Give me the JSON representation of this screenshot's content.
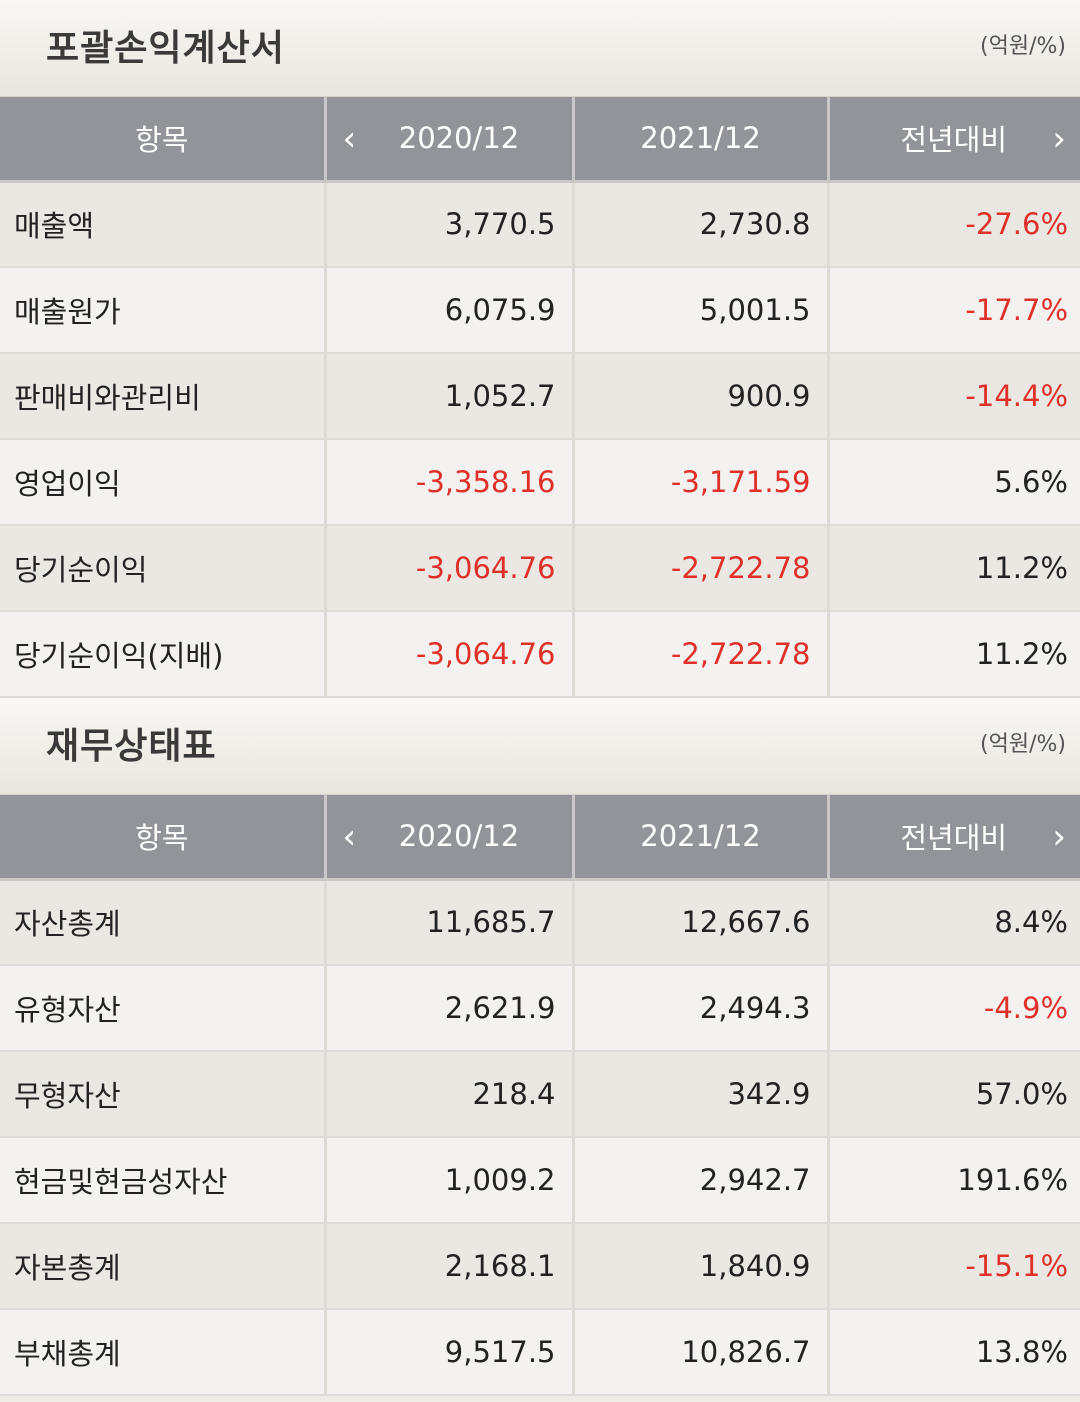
{
  "colors": {
    "negative": "#e0302a",
    "header_bg": "#93949a"
  },
  "income": {
    "title": "포괄손익계산서",
    "unit": "(억원/%)",
    "headers": [
      "항목",
      "2020/12",
      "2021/12",
      "전년대비"
    ],
    "rows": [
      {
        "label": "매출액",
        "v2020": "3,770.5",
        "v2021": "2,730.8",
        "yoy": "-27.6%",
        "neg": [
          false,
          false,
          true
        ]
      },
      {
        "label": "매출원가",
        "v2020": "6,075.9",
        "v2021": "5,001.5",
        "yoy": "-17.7%",
        "neg": [
          false,
          false,
          true
        ]
      },
      {
        "label": "판매비와관리비",
        "v2020": "1,052.7",
        "v2021": "900.9",
        "yoy": "-14.4%",
        "neg": [
          false,
          false,
          true
        ]
      },
      {
        "label": "영업이익",
        "v2020": "-3,358.16",
        "v2021": "-3,171.59",
        "yoy": "5.6%",
        "neg": [
          true,
          true,
          false
        ]
      },
      {
        "label": "당기순이익",
        "v2020": "-3,064.76",
        "v2021": "-2,722.78",
        "yoy": "11.2%",
        "neg": [
          true,
          true,
          false
        ]
      },
      {
        "label": "당기순이익(지배)",
        "v2020": "-3,064.76",
        "v2021": "-2,722.78",
        "yoy": "11.2%",
        "neg": [
          true,
          true,
          false
        ]
      }
    ]
  },
  "balance": {
    "title": "재무상태표",
    "unit": "(억원/%)",
    "headers": [
      "항목",
      "2020/12",
      "2021/12",
      "전년대비"
    ],
    "rows": [
      {
        "label": "자산총계",
        "v2020": "11,685.7",
        "v2021": "12,667.6",
        "yoy": "8.4%",
        "neg": [
          false,
          false,
          false
        ]
      },
      {
        "label": "유형자산",
        "v2020": "2,621.9",
        "v2021": "2,494.3",
        "yoy": "-4.9%",
        "neg": [
          false,
          false,
          true
        ]
      },
      {
        "label": "무형자산",
        "v2020": "218.4",
        "v2021": "342.9",
        "yoy": "57.0%",
        "neg": [
          false,
          false,
          false
        ]
      },
      {
        "label": "현금및현금성자산",
        "v2020": "1,009.2",
        "v2021": "2,942.7",
        "yoy": "191.6%",
        "neg": [
          false,
          false,
          false
        ]
      },
      {
        "label": "자본총계",
        "v2020": "2,168.1",
        "v2021": "1,840.9",
        "yoy": "-15.1%",
        "neg": [
          false,
          false,
          true
        ]
      },
      {
        "label": "부채총계",
        "v2020": "9,517.5",
        "v2021": "10,826.7",
        "yoy": "13.8%",
        "neg": [
          false,
          false,
          false
        ]
      }
    ]
  }
}
